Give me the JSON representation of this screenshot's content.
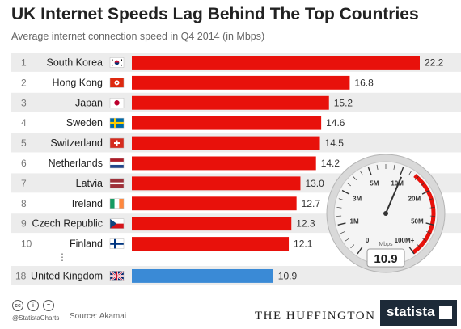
{
  "title": "UK Internet Speeds Lag Behind The Top Countries",
  "subtitle": "Average internet connection speed in Q4 2014 (in Mbps)",
  "colors": {
    "bar": "#e8110b",
    "highlight": "#3a8ad6",
    "row_alt": "#ececec"
  },
  "chart_data": {
    "type": "bar",
    "orientation": "horizontal",
    "unit": "Mbps",
    "rows": [
      {
        "rank": "1",
        "country": "South Korea",
        "value": 22.2,
        "flag": "south-korea-flag"
      },
      {
        "rank": "2",
        "country": "Hong Kong",
        "value": 16.8,
        "flag": "hong-kong-flag"
      },
      {
        "rank": "3",
        "country": "Japan",
        "value": 15.2,
        "flag": "japan-flag"
      },
      {
        "rank": "4",
        "country": "Sweden",
        "value": 14.6,
        "flag": "sweden-flag"
      },
      {
        "rank": "5",
        "country": "Switzerland",
        "value": 14.5,
        "flag": "switzerland-flag"
      },
      {
        "rank": "6",
        "country": "Netherlands",
        "value": 14.2,
        "flag": "netherlands-flag"
      },
      {
        "rank": "7",
        "country": "Latvia",
        "value": 13.0,
        "flag": "latvia-flag"
      },
      {
        "rank": "8",
        "country": "Ireland",
        "value": 12.7,
        "flag": "ireland-flag"
      },
      {
        "rank": "9",
        "country": "Czech Republic",
        "value": 12.3,
        "flag": "czech-republic-flag"
      },
      {
        "rank": "10",
        "country": "Finland",
        "value": 12.1,
        "flag": "finland-flag"
      }
    ],
    "ellipsis": "⋮",
    "highlight": {
      "rank": "18",
      "country": "United Kingdom",
      "value": 10.9,
      "flag": "united-kingdom-flag"
    },
    "xlim": [
      0,
      22.2
    ]
  },
  "gauge": {
    "ticks": [
      "0",
      "1M",
      "3M",
      "5M",
      "10M",
      "20M",
      "50M",
      "100M+"
    ],
    "unit": "Mbps",
    "value": "10.9"
  },
  "footer": {
    "handle": "@StatistaCharts",
    "source": "Source: Akamai",
    "publisher": "THE HUFFINGTON POST",
    "brand": "statista",
    "cc_icons": [
      "cc",
      "i",
      "="
    ]
  }
}
